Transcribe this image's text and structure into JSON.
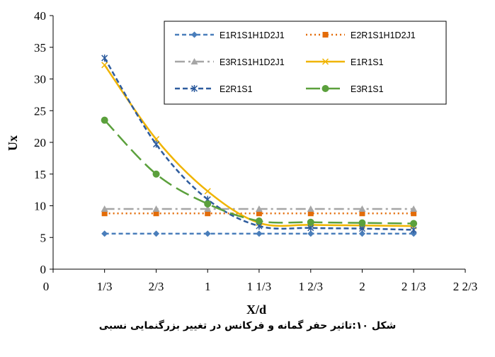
{
  "caption": "شکل ۱۰:تاثیر حفر گمانه و فرکانس در تغییر بزرگنمایی نسبی",
  "chart_data": {
    "type": "line",
    "xlabel": "X/d",
    "ylabel": "Ux",
    "x_ticks": [
      0,
      0.333,
      0.667,
      1,
      1.333,
      1.667,
      2,
      2.333,
      2.667
    ],
    "x_tick_labels": [
      "0",
      "1/3",
      "2/3",
      "1",
      "1 1/3",
      "1 2/3",
      "2",
      "2 1/3",
      "2 2/3"
    ],
    "xlim": [
      0,
      2.667
    ],
    "ylim": [
      0,
      40
    ],
    "y_ticks": [
      0,
      5,
      10,
      15,
      20,
      25,
      30,
      35,
      40
    ],
    "grid": false,
    "legend_position": "top-right",
    "x": [
      0.333,
      0.667,
      1,
      1.333,
      1.667,
      2,
      2.333
    ],
    "series": [
      {
        "name": "E1R1S1H1D2J1",
        "color": "#4A7EBB",
        "dash": "6,4",
        "marker": "diamond",
        "values": [
          5.6,
          5.6,
          5.6,
          5.6,
          5.6,
          5.6,
          5.6
        ]
      },
      {
        "name": "E2R1S1H1D2J1",
        "color": "#E36C09",
        "dash": "2,4",
        "marker": "square",
        "values": [
          8.8,
          8.8,
          8.8,
          8.8,
          8.8,
          8.8,
          8.8
        ]
      },
      {
        "name": "E3R1S1H1D2J1",
        "color": "#A6A6A6",
        "dash": "14,5,3,5",
        "marker": "triangle",
        "values": [
          9.5,
          9.5,
          9.5,
          9.5,
          9.5,
          9.5,
          9.5
        ]
      },
      {
        "name": "E1R1S1",
        "color": "#F0B400",
        "dash": "",
        "marker": "x",
        "values": [
          32.2,
          20.5,
          12.3,
          7.3,
          7.0,
          6.9,
          6.8
        ]
      },
      {
        "name": "E2R1S1",
        "color": "#2E5C9E",
        "dash": "7,4",
        "marker": "star",
        "values": [
          33.3,
          19.7,
          11.0,
          6.8,
          6.5,
          6.4,
          6.2
        ]
      },
      {
        "name": "E3R1S1",
        "color": "#5BA03C",
        "dash": "20,8",
        "marker": "circle",
        "values": [
          23.5,
          15.0,
          10.3,
          7.6,
          7.4,
          7.3,
          7.2
        ]
      }
    ]
  }
}
